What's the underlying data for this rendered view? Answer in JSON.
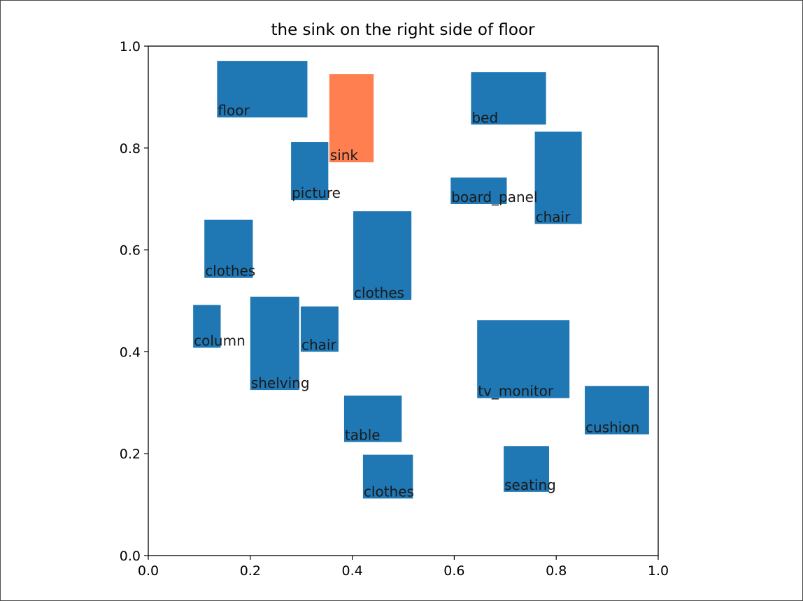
{
  "chart_data": {
    "type": "bar",
    "title": "the sink on the right side of floor",
    "xlabel": "",
    "ylabel": "",
    "xlim": [
      0.0,
      1.0
    ],
    "ylim": [
      0.0,
      1.0
    ],
    "xticks": [
      "0.0",
      "0.2",
      "0.4",
      "0.6",
      "0.8",
      "1.0"
    ],
    "yticks": [
      "0.0",
      "0.2",
      "0.4",
      "0.6",
      "0.8",
      "1.0"
    ],
    "grid": false,
    "legend": "none",
    "colors": {
      "default": "#1f77b4",
      "highlight": "#ff7f50"
    },
    "boxes": [
      {
        "label": "floor",
        "x0": 0.135,
        "y0": 0.86,
        "x1": 0.312,
        "y1": 0.971,
        "highlight": false
      },
      {
        "label": "sink",
        "x0": 0.355,
        "y0": 0.772,
        "x1": 0.442,
        "y1": 0.945,
        "highlight": true
      },
      {
        "label": "bed",
        "x0": 0.633,
        "y0": 0.846,
        "x1": 0.78,
        "y1": 0.949,
        "highlight": false
      },
      {
        "label": "picture",
        "x0": 0.28,
        "y0": 0.698,
        "x1": 0.353,
        "y1": 0.812,
        "highlight": false
      },
      {
        "label": "board_panel",
        "x0": 0.593,
        "y0": 0.69,
        "x1": 0.703,
        "y1": 0.742,
        "highlight": false
      },
      {
        "label": "chair",
        "x0": 0.758,
        "y0": 0.651,
        "x1": 0.85,
        "y1": 0.832,
        "highlight": false
      },
      {
        "label": "clothes",
        "x0": 0.11,
        "y0": 0.545,
        "x1": 0.205,
        "y1": 0.659,
        "highlight": false
      },
      {
        "label": "clothes",
        "x0": 0.402,
        "y0": 0.502,
        "x1": 0.516,
        "y1": 0.676,
        "highlight": false
      },
      {
        "label": "column",
        "x0": 0.088,
        "y0": 0.408,
        "x1": 0.142,
        "y1": 0.492,
        "highlight": false
      },
      {
        "label": "shelving",
        "x0": 0.2,
        "y0": 0.325,
        "x1": 0.296,
        "y1": 0.508,
        "highlight": false
      },
      {
        "label": "chair",
        "x0": 0.299,
        "y0": 0.4,
        "x1": 0.373,
        "y1": 0.489,
        "highlight": false
      },
      {
        "label": "tv_monitor",
        "x0": 0.645,
        "y0": 0.309,
        "x1": 0.826,
        "y1": 0.462,
        "highlight": false
      },
      {
        "label": "cushion",
        "x0": 0.856,
        "y0": 0.238,
        "x1": 0.982,
        "y1": 0.333,
        "highlight": false
      },
      {
        "label": "table",
        "x0": 0.384,
        "y0": 0.223,
        "x1": 0.497,
        "y1": 0.314,
        "highlight": false
      },
      {
        "label": "clothes",
        "x0": 0.421,
        "y0": 0.112,
        "x1": 0.519,
        "y1": 0.198,
        "highlight": false
      },
      {
        "label": "seating",
        "x0": 0.697,
        "y0": 0.125,
        "x1": 0.786,
        "y1": 0.215,
        "highlight": false
      }
    ]
  }
}
